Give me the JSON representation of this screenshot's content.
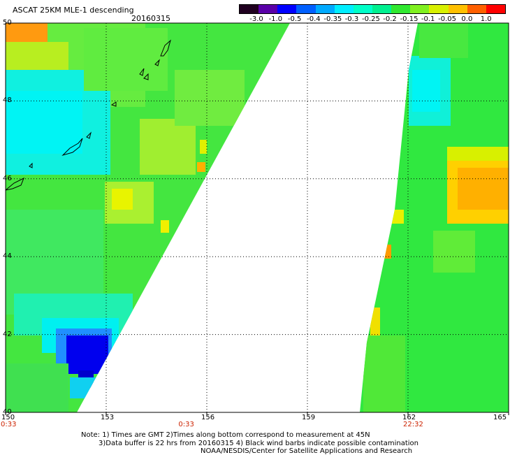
{
  "header": {
    "title": "ASCAT 25KM MLE-1 descending",
    "date": "20160315"
  },
  "colorbar": {
    "labels": [
      "-3.0",
      "-1.0",
      "-0.5",
      "-0.4",
      "-0.35",
      "-0.3",
      "-0.25",
      "-0.2",
      "-0.15",
      "-0.1",
      "-0.05",
      "0.0",
      "1.0"
    ],
    "colors": [
      "#200020",
      "#5a00a8",
      "#0000ff",
      "#0060ff",
      "#00aaff",
      "#00eeff",
      "#00ffc8",
      "#00f090",
      "#30e830",
      "#80f020",
      "#d8f000",
      "#ffc000",
      "#ff6000",
      "#ff0000"
    ]
  },
  "chart_data": {
    "type": "heatmap",
    "title": "ASCAT 25KM MLE-1 descending",
    "xlim": [
      150,
      165
    ],
    "ylim": [
      40,
      50
    ],
    "x_ticks": [
      "150",
      "153",
      "156",
      "159",
      "162",
      "165"
    ],
    "y_ticks": [
      "40",
      "42",
      "44",
      "46",
      "48",
      "50"
    ],
    "grid": true,
    "time_labels": [
      {
        "x": 150,
        "text": "0:33"
      },
      {
        "x": 155.3,
        "text": "0:33"
      },
      {
        "x": 162,
        "text": "22:32"
      }
    ]
  },
  "notes": {
    "line1": "Note: 1) Times are GMT 2)Times along bottom correspond to measurement at 45N",
    "line2": "3)Data buffer is 22 hrs from 20160315 4) Black wind barbs indicate possible contamination",
    "line3": "NOAA/NESDIS/Center for Satellite Applications and Research"
  }
}
